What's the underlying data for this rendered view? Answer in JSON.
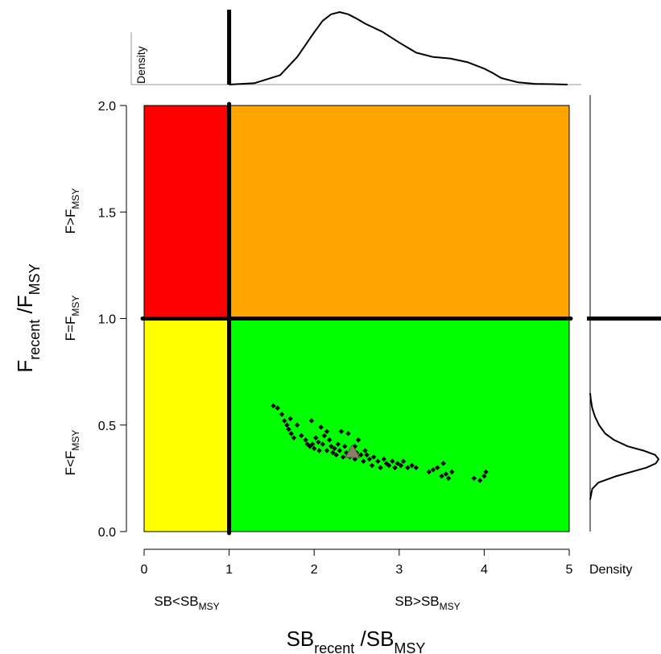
{
  "chart_data": {
    "type": "scatter",
    "title": "",
    "xlabel": {
      "main": "SB",
      "sub1": "recent",
      "sep": " /SB",
      "sub2": "MSY"
    },
    "ylabel": {
      "main": "F",
      "sub1": "recent",
      "sep": " /F",
      "sub2": "MSY"
    },
    "xlim": [
      0,
      5
    ],
    "ylim": [
      0,
      2
    ],
    "x_ticks": [
      "0",
      "1",
      "2",
      "3",
      "4",
      "5"
    ],
    "y_ticks": [
      "0.0",
      "0.5",
      "1.0",
      "1.5",
      "2.0"
    ],
    "reference_x": 1,
    "reference_y": 1,
    "zones": [
      {
        "name": "overfished-overfishing",
        "color": "#ff0000",
        "x": [
          0,
          1
        ],
        "y": [
          1,
          2
        ]
      },
      {
        "name": "overfishing",
        "color": "#ffa500",
        "x": [
          1,
          5
        ],
        "y": [
          1,
          2
        ]
      },
      {
        "name": "overfished",
        "color": "#ffff00",
        "x": [
          0,
          1
        ],
        "y": [
          0,
          1
        ]
      },
      {
        "name": "healthy",
        "color": "#00ff00",
        "x": [
          1,
          5
        ],
        "y": [
          0,
          1
        ]
      }
    ],
    "x_zone_labels": [
      {
        "main": "SB<SB",
        "sub": "MSY",
        "x": 0.5
      },
      {
        "main": "SB>SB",
        "sub": "MSY",
        "x": 3.0
      }
    ],
    "y_zone_labels": [
      {
        "main": "F<F",
        "sub": "MSY",
        "y": 0.25
      },
      {
        "main": "F=F",
        "sub": "MSY",
        "y": 1.0
      },
      {
        "main": "F>F",
        "sub": "MSY",
        "y": 1.5
      }
    ],
    "top_density_label": "Density",
    "right_density_label": "Density",
    "points": [
      [
        1.52,
        0.59
      ],
      [
        1.57,
        0.58
      ],
      [
        1.62,
        0.55
      ],
      [
        1.65,
        0.52
      ],
      [
        1.68,
        0.5
      ],
      [
        1.7,
        0.48
      ],
      [
        1.73,
        0.46
      ],
      [
        1.76,
        0.44
      ],
      [
        1.72,
        0.53
      ],
      [
        1.8,
        0.5
      ],
      [
        1.85,
        0.45
      ],
      [
        1.9,
        0.43
      ],
      [
        1.92,
        0.41
      ],
      [
        1.95,
        0.4
      ],
      [
        1.97,
        0.52
      ],
      [
        2.0,
        0.39
      ],
      [
        2.02,
        0.44
      ],
      [
        2.05,
        0.42
      ],
      [
        2.06,
        0.38
      ],
      [
        2.08,
        0.49
      ],
      [
        2.1,
        0.41
      ],
      [
        2.12,
        0.45
      ],
      [
        2.15,
        0.38
      ],
      [
        2.18,
        0.43
      ],
      [
        2.2,
        0.4
      ],
      [
        2.22,
        0.37
      ],
      [
        2.24,
        0.39
      ],
      [
        2.26,
        0.36
      ],
      [
        2.28,
        0.41
      ],
      [
        2.3,
        0.38
      ],
      [
        2.32,
        0.47
      ],
      [
        2.34,
        0.35
      ],
      [
        2.36,
        0.4
      ],
      [
        2.38,
        0.37
      ],
      [
        2.4,
        0.46
      ],
      [
        2.42,
        0.35
      ],
      [
        2.45,
        0.39
      ],
      [
        2.48,
        0.34
      ],
      [
        2.5,
        0.37
      ],
      [
        2.52,
        0.43
      ],
      [
        2.55,
        0.36
      ],
      [
        2.58,
        0.33
      ],
      [
        2.62,
        0.36
      ],
      [
        2.65,
        0.34
      ],
      [
        2.7,
        0.35
      ],
      [
        2.75,
        0.33
      ],
      [
        2.78,
        0.3
      ],
      [
        2.82,
        0.34
      ],
      [
        2.85,
        0.32
      ],
      [
        2.88,
        0.31
      ],
      [
        2.92,
        0.33
      ],
      [
        2.95,
        0.3
      ],
      [
        2.98,
        0.32
      ],
      [
        3.02,
        0.31
      ],
      [
        3.05,
        0.33
      ],
      [
        3.1,
        0.3
      ],
      [
        3.15,
        0.31
      ],
      [
        3.2,
        0.3
      ],
      [
        3.35,
        0.28
      ],
      [
        3.4,
        0.29
      ],
      [
        3.45,
        0.3
      ],
      [
        3.5,
        0.26
      ],
      [
        3.52,
        0.32
      ],
      [
        3.55,
        0.27
      ],
      [
        3.58,
        0.25
      ],
      [
        3.62,
        0.28
      ],
      [
        3.88,
        0.25
      ],
      [
        3.95,
        0.24
      ],
      [
        4.0,
        0.26
      ],
      [
        4.02,
        0.28
      ],
      [
        2.48,
        0.4
      ],
      [
        2.6,
        0.38
      ],
      [
        2.15,
        0.47
      ],
      [
        1.98,
        0.41
      ],
      [
        2.68,
        0.31
      ]
    ],
    "median": {
      "x": 2.45,
      "y": 0.37,
      "marker": "triangle",
      "color": "#8b7d6b"
    },
    "top_density": {
      "x": [
        1.0,
        1.3,
        1.6,
        1.8,
        2.0,
        2.1,
        2.2,
        2.3,
        2.4,
        2.5,
        2.6,
        2.8,
        3.0,
        3.2,
        3.4,
        3.6,
        3.8,
        4.0,
        4.1,
        4.2,
        4.4,
        4.6,
        4.8,
        4.98
      ],
      "y": [
        0.0,
        0.02,
        0.13,
        0.38,
        0.72,
        0.88,
        0.97,
        1.0,
        0.97,
        0.91,
        0.84,
        0.73,
        0.58,
        0.44,
        0.38,
        0.36,
        0.31,
        0.22,
        0.16,
        0.09,
        0.03,
        0.01,
        0.005,
        0.0
      ]
    },
    "right_density": {
      "y": [
        0.15,
        0.2,
        0.23,
        0.26,
        0.28,
        0.3,
        0.32,
        0.34,
        0.36,
        0.38,
        0.4,
        0.43,
        0.46,
        0.5,
        0.54,
        0.58,
        0.62,
        0.65
      ],
      "d": [
        0.0,
        0.03,
        0.12,
        0.38,
        0.6,
        0.82,
        0.96,
        1.0,
        0.95,
        0.78,
        0.55,
        0.35,
        0.22,
        0.13,
        0.07,
        0.03,
        0.01,
        0.0
      ]
    }
  }
}
